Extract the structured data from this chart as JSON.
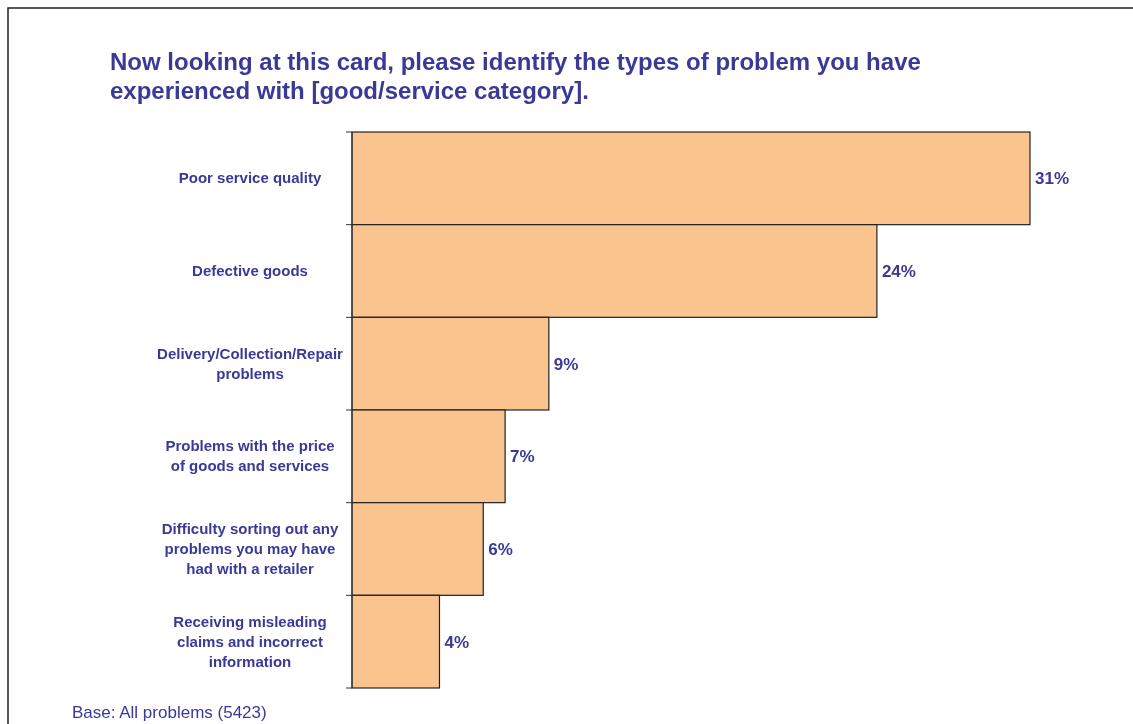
{
  "chart_data": {
    "type": "bar",
    "orientation": "horizontal",
    "title": "Now looking at this card, please identify the types of problem you have experienced with [good/service category].",
    "categories": [
      "Poor service quality",
      "Defective goods",
      "Delivery/Collection/Repair problems",
      "Problems with the price of goods and services",
      "Difficulty sorting out any problems you may have had with a retailer",
      "Receiving misleading claims and incorrect information"
    ],
    "values": [
      31,
      24,
      9,
      7,
      6,
      4
    ],
    "value_labels": [
      "31%",
      "24%",
      "9%",
      "7%",
      "6%",
      "4%"
    ],
    "color": "#f9c48e",
    "annotations": [
      "Base: All problems (5423)"
    ]
  }
}
